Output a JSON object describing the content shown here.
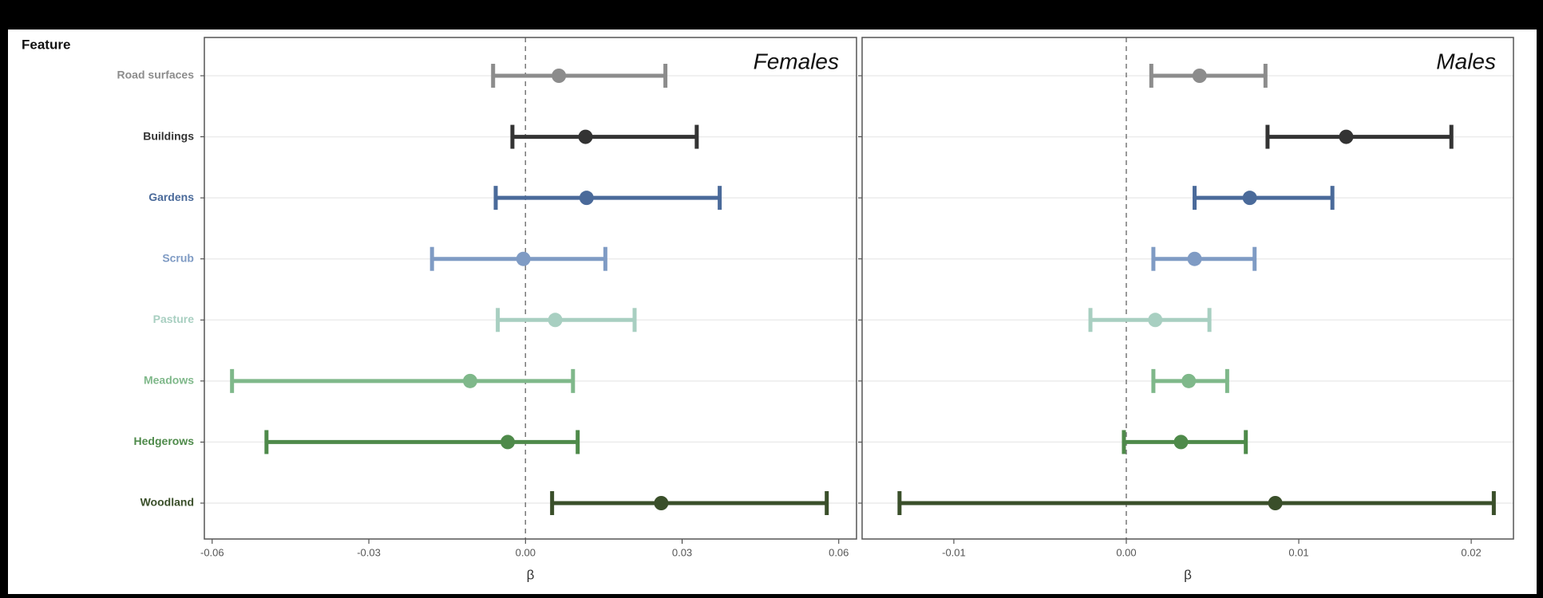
{
  "chart_data": [
    {
      "type": "errorbar",
      "title": "Females",
      "x_label": "β",
      "y_label": "Feature",
      "categories": [
        "Road surfaces",
        "Buildings",
        "Gardens",
        "Scrub",
        "Pasture",
        "Meadows",
        "Hedgerows",
        "Woodland"
      ],
      "colors": [
        "#8c8c8c",
        "#333333",
        "#4a6a9a",
        "#7f9bc4",
        "#a8cfc1",
        "#7fb88a",
        "#4e8a4a",
        "#3a4f2a"
      ],
      "values": [
        0.0064,
        0.0115,
        0.0117,
        -0.0004,
        0.0057,
        -0.0106,
        -0.0034,
        0.026
      ],
      "lower": [
        -0.0062,
        -0.0025,
        -0.0057,
        -0.0179,
        -0.0053,
        -0.0562,
        -0.0496,
        0.0051
      ],
      "upper": [
        0.0268,
        0.0328,
        0.0372,
        0.0153,
        0.0209,
        0.0091,
        0.01,
        0.0577
      ],
      "xlim": [
        -0.0615,
        0.0634
      ],
      "xticks": [
        -0.06,
        -0.03,
        {
          "value": 0,
          "label": "0.00"
        },
        0.03,
        0.06
      ],
      "grid": true
    },
    {
      "type": "errorbar",
      "title": "Males",
      "x_label": "β",
      "colors": [
        "#8c8c8c",
        "#333333",
        "#4a6a9a",
        "#7f9bc4",
        "#a8cfc1",
        "#7fb88a",
        "#4e8a4a",
        "#3a4f2a"
      ],
      "values": [
        0.00425,
        0.01275,
        0.00716,
        0.00396,
        0.00168,
        0.00362,
        0.00317,
        0.00864
      ],
      "lower": [
        0.00145,
        0.00819,
        0.00396,
        0.00157,
        -0.00208,
        0.00157,
        -0.00014,
        -0.01315
      ],
      "upper": [
        0.00807,
        0.01885,
        0.01195,
        0.00744,
        0.00482,
        0.00585,
        0.00693,
        0.02131
      ],
      "xlim": [
        -0.01532,
        0.02245
      ],
      "xticks": [
        -0.01,
        {
          "value": 0,
          "label": "0.00"
        },
        0.01,
        0.02
      ],
      "grid": true
    }
  ]
}
